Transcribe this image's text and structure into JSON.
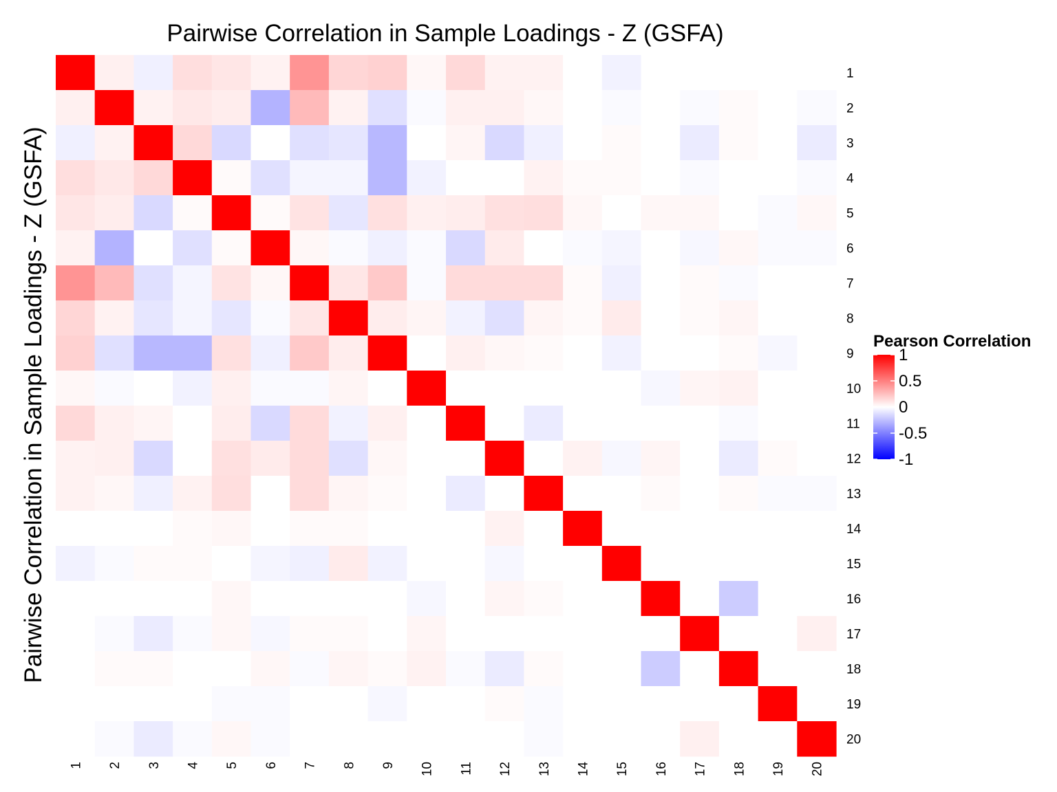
{
  "chart_data": {
    "type": "heatmap",
    "title": "Pairwise Correlation in Sample Loadings - Z (GSFA)",
    "xlabel": "",
    "ylabel": "Pairwise Correlation in Sample Loadings - Z (GSFA)",
    "x_tick_labels": [
      "1",
      "2",
      "3",
      "4",
      "5",
      "6",
      "7",
      "8",
      "9",
      "10",
      "11",
      "12",
      "13",
      "14",
      "15",
      "16",
      "17",
      "18",
      "19",
      "20"
    ],
    "y_tick_labels": [
      "1",
      "2",
      "3",
      "4",
      "5",
      "6",
      "7",
      "8",
      "9",
      "10",
      "11",
      "12",
      "13",
      "14",
      "15",
      "16",
      "17",
      "18",
      "19",
      "20"
    ],
    "legend": {
      "title": "Pearson Correlation",
      "placement": "right",
      "range": [
        -1,
        1
      ],
      "ticks": [
        "1",
        "0.5",
        "0",
        "-0.5",
        "-1"
      ],
      "colors": {
        "low": "#0000ff",
        "mid": "#ffffff",
        "high": "#ff0000"
      }
    },
    "values": [
      [
        1,
        0.06,
        -0.06,
        0.13,
        0.1,
        0.05,
        0.42,
        0.16,
        0.18,
        0.03,
        0.15,
        0.05,
        0.05,
        0,
        -0.05,
        0,
        0,
        0,
        0,
        0
      ],
      [
        0.06,
        1,
        0.05,
        0.09,
        0.07,
        -0.3,
        0.27,
        0.05,
        -0.12,
        -0.02,
        0.06,
        0.06,
        0.03,
        0,
        -0.02,
        0,
        -0.02,
        0.02,
        0,
        -0.02
      ],
      [
        -0.06,
        0.05,
        1,
        0.15,
        -0.15,
        0,
        -0.12,
        -0.1,
        -0.28,
        0,
        0.04,
        -0.15,
        -0.06,
        0,
        0.02,
        0,
        -0.08,
        0.02,
        0,
        -0.08
      ],
      [
        0.13,
        0.09,
        0.15,
        1,
        0.02,
        -0.12,
        -0.04,
        -0.04,
        -0.28,
        -0.05,
        0,
        0,
        0.05,
        0.02,
        0.02,
        0,
        -0.02,
        0,
        0,
        -0.02
      ],
      [
        0.1,
        0.07,
        -0.15,
        0.02,
        1,
        0.02,
        0.11,
        -0.1,
        0.12,
        0.06,
        0.07,
        0.12,
        0.13,
        0.03,
        0,
        0.03,
        0.03,
        0,
        -0.02,
        0.03
      ],
      [
        0.05,
        -0.3,
        0,
        -0.12,
        0.02,
        1,
        0.03,
        -0.02,
        -0.06,
        -0.02,
        -0.15,
        0.08,
        0,
        -0.02,
        -0.04,
        0,
        -0.03,
        0.03,
        -0.02,
        -0.02
      ],
      [
        0.42,
        0.27,
        -0.12,
        -0.04,
        0.11,
        0.03,
        1,
        0.1,
        0.21,
        -0.02,
        0.14,
        0.14,
        0.14,
        0.02,
        -0.06,
        0,
        0.02,
        -0.02,
        0,
        0
      ],
      [
        0.16,
        0.05,
        -0.1,
        -0.04,
        -0.1,
        -0.02,
        0.1,
        1,
        0.07,
        0.04,
        -0.05,
        -0.12,
        0.04,
        0.02,
        0.08,
        0,
        0.02,
        0.04,
        0,
        0
      ],
      [
        0.18,
        -0.12,
        -0.28,
        -0.28,
        0.12,
        -0.06,
        0.21,
        0.07,
        1,
        0,
        0.06,
        0.03,
        0.02,
        0,
        -0.05,
        0,
        0,
        0.02,
        -0.03,
        0
      ],
      [
        0.03,
        -0.02,
        0,
        -0.05,
        0.06,
        -0.02,
        -0.02,
        0.04,
        0,
        1,
        0,
        0,
        0,
        0,
        0,
        -0.03,
        0.04,
        0.05,
        0,
        0
      ],
      [
        0.15,
        0.06,
        0.04,
        0,
        0.07,
        -0.15,
        0.14,
        -0.05,
        0.06,
        0,
        1,
        0,
        -0.08,
        0,
        0,
        0,
        0,
        -0.02,
        0,
        0
      ],
      [
        0.05,
        0.06,
        -0.15,
        0,
        0.12,
        0.08,
        0.14,
        -0.12,
        0.03,
        0,
        0,
        1,
        0,
        0.05,
        -0.03,
        0.04,
        0,
        -0.08,
        0.02,
        0
      ],
      [
        0.05,
        0.03,
        -0.06,
        0.05,
        0.13,
        0,
        0.14,
        0.04,
        0.02,
        0,
        -0.08,
        0,
        1,
        0,
        0,
        0.02,
        0,
        0.02,
        -0.02,
        -0.02
      ],
      [
        0,
        0,
        0,
        0.02,
        0.03,
        0,
        0.02,
        0.02,
        0,
        0,
        0,
        0.05,
        0,
        1,
        0,
        0,
        0,
        0,
        0,
        0
      ],
      [
        -0.05,
        -0.02,
        0.02,
        0.02,
        0,
        -0.04,
        -0.06,
        0.08,
        -0.05,
        0,
        0,
        -0.03,
        0,
        0,
        1,
        0,
        0,
        0,
        0,
        0
      ],
      [
        0,
        0,
        0,
        0,
        0.03,
        0,
        0,
        0,
        0,
        -0.03,
        0,
        0.04,
        0.02,
        0,
        0,
        1,
        0,
        -0.2,
        0,
        0
      ],
      [
        0,
        -0.02,
        -0.08,
        -0.02,
        0.03,
        -0.03,
        0.02,
        0.02,
        0,
        0.04,
        0,
        0,
        0,
        0,
        0,
        0,
        1,
        0,
        0,
        0.06
      ],
      [
        0,
        0.02,
        0.02,
        0,
        0,
        0.03,
        -0.02,
        0.04,
        0.02,
        0.05,
        -0.02,
        -0.08,
        0.02,
        0,
        0,
        -0.2,
        0,
        1,
        0,
        0
      ],
      [
        0,
        0,
        0,
        0,
        -0.02,
        -0.02,
        0,
        0,
        -0.03,
        0,
        0,
        0.02,
        -0.02,
        0,
        0,
        0,
        0,
        0,
        1,
        0
      ],
      [
        0,
        -0.02,
        -0.08,
        -0.02,
        0.03,
        -0.02,
        0,
        0,
        0,
        0,
        0,
        0,
        -0.02,
        0,
        0,
        0,
        0.06,
        0,
        0,
        1
      ]
    ]
  }
}
